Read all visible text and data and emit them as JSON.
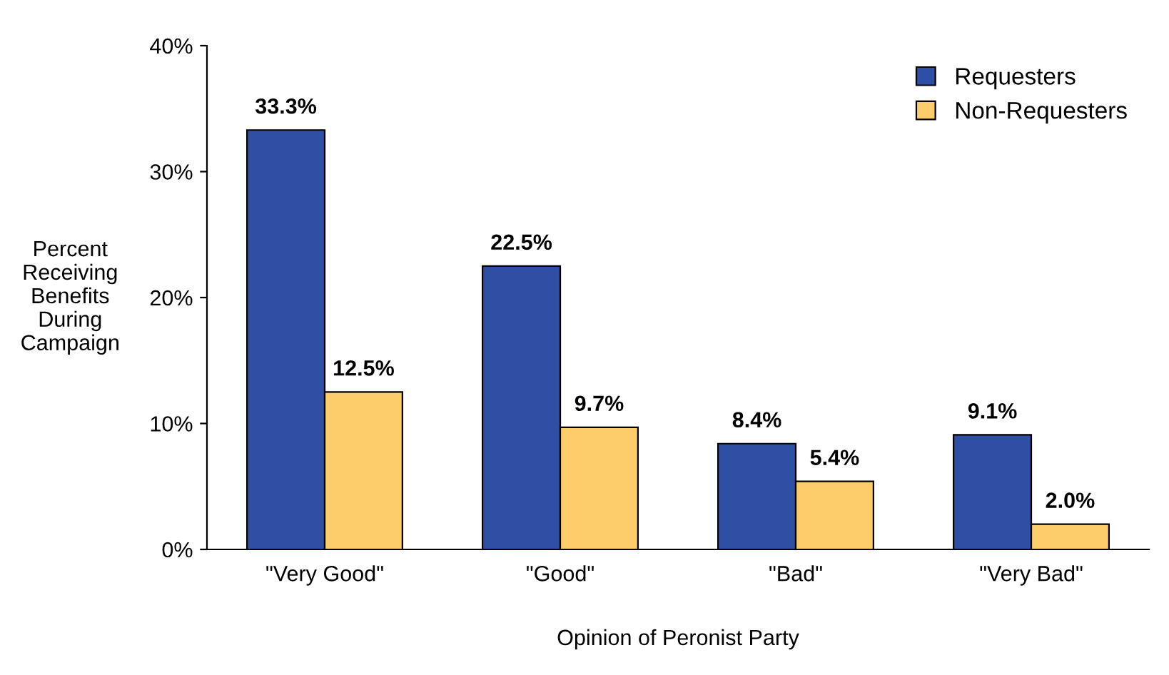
{
  "chart_data": {
    "type": "bar",
    "xlabel": "Opinion of Peronist Party",
    "ylabel": "Percent\nReceiving\nBenefits\nDuring\nCampaign",
    "categories": [
      "\"Very Good\"",
      "\"Good\"",
      "\"Bad\"",
      "\"Very Bad\""
    ],
    "series": [
      {
        "name": "Requesters",
        "color": "#2e4fa3",
        "values": [
          33.3,
          22.5,
          8.4,
          9.1
        ],
        "value_labels": [
          "33.3%",
          "22.5%",
          "8.4%",
          "9.1%"
        ]
      },
      {
        "name": "Non-Requesters",
        "color": "#fdcd6b",
        "values": [
          12.5,
          9.7,
          5.4,
          2.0
        ],
        "value_labels": [
          "12.5%",
          "9.7%",
          "5.4%",
          "2.0%"
        ]
      }
    ],
    "ylim": [
      0,
      40
    ],
    "yticks": [
      {
        "value": 0,
        "label": "0%"
      },
      {
        "value": 10,
        "label": "10%"
      },
      {
        "value": 20,
        "label": "20%"
      },
      {
        "value": 30,
        "label": "30%"
      },
      {
        "value": 40,
        "label": "40%"
      }
    ],
    "grid": false,
    "legend": "top right"
  }
}
